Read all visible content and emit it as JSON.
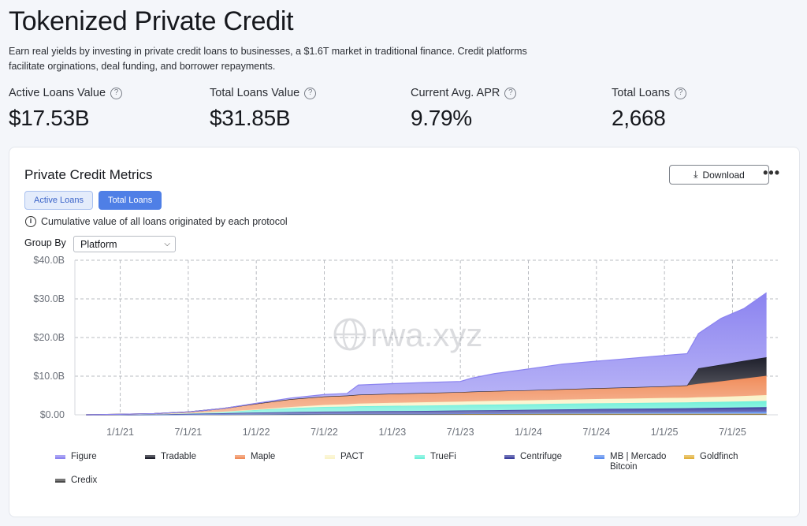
{
  "header": {
    "title": "Tokenized Private Credit",
    "description": "Earn real yields by investing in private credit loans to businesses, a $1.6T market in traditional finance. Credit platforms facilitate orginations, deal funding, and borrower repayments."
  },
  "stats": [
    {
      "label": "Active Loans Value",
      "value": "$17.53B"
    },
    {
      "label": "Total Loans Value",
      "value": "$31.85B"
    },
    {
      "label": "Current Avg. APR",
      "value": "9.79%"
    },
    {
      "label": "Total Loans",
      "value": "2,668"
    }
  ],
  "card": {
    "title": "Private Credit Metrics",
    "download_label": "Download",
    "more_label": "•••",
    "tabs": [
      {
        "label": "Active Loans",
        "active": false
      },
      {
        "label": "Total Loans",
        "active": true
      }
    ],
    "info_text": "Cumulative value of all loans originated by each protocol",
    "group_by_label": "Group By",
    "group_by_value": "Platform",
    "watermark": "rwa.xyz"
  },
  "chart_data": {
    "type": "area",
    "stacked": true,
    "cumulative": true,
    "y_ticks": [
      "$0.00",
      "$10.0B",
      "$20.0B",
      "$30.0B",
      "$40.0B"
    ],
    "ylim": [
      0,
      40
    ],
    "y_unit": "$B",
    "x_ticks": [
      "1/1/21",
      "7/1/21",
      "1/1/22",
      "7/1/22",
      "1/1/23",
      "7/1/23",
      "1/1/24",
      "7/1/24",
      "1/1/25",
      "7/1/25"
    ],
    "x": [
      "2020-10",
      "2021-01",
      "2021-04",
      "2021-07",
      "2021-10",
      "2022-01",
      "2022-04",
      "2022-07",
      "2022-09",
      "2022-10",
      "2023-01",
      "2023-04",
      "2023-07",
      "2023-08",
      "2023-10",
      "2024-01",
      "2024-04",
      "2024-07",
      "2024-10",
      "2025-01",
      "2025-03",
      "2025-04",
      "2025-06",
      "2025-08",
      "2025-10"
    ],
    "grid": true,
    "legend_position": "bottom",
    "series": [
      {
        "name": "Credix",
        "color": "#4a4a4a",
        "values": [
          0,
          0,
          0,
          0.02,
          0.05,
          0.08,
          0.1,
          0.12,
          0.12,
          0.13,
          0.13,
          0.13,
          0.13,
          0.13,
          0.13,
          0.13,
          0.13,
          0.13,
          0.13,
          0.13,
          0.13,
          0.13,
          0.13,
          0.13,
          0.13
        ]
      },
      {
        "name": "Goldfinch",
        "color": "#e2b13c",
        "values": [
          0,
          0,
          0.01,
          0.03,
          0.06,
          0.1,
          0.12,
          0.13,
          0.13,
          0.13,
          0.13,
          0.13,
          0.13,
          0.13,
          0.13,
          0.13,
          0.13,
          0.13,
          0.13,
          0.13,
          0.13,
          0.13,
          0.13,
          0.13,
          0.13
        ]
      },
      {
        "name": "MB | Mercado Bitcoin",
        "color": "#5b8def",
        "values": [
          0,
          0,
          0,
          0,
          0,
          0,
          0,
          0,
          0,
          0,
          0,
          0,
          0.05,
          0.08,
          0.1,
          0.15,
          0.2,
          0.25,
          0.3,
          0.35,
          0.38,
          0.4,
          0.45,
          0.5,
          0.55
        ]
      },
      {
        "name": "Centrifuge",
        "color": "#3b3f9e",
        "values": [
          0,
          0.05,
          0.1,
          0.2,
          0.3,
          0.4,
          0.5,
          0.6,
          0.62,
          0.65,
          0.7,
          0.75,
          0.8,
          0.82,
          0.85,
          0.9,
          0.95,
          1.0,
          1.02,
          1.05,
          1.08,
          1.1,
          1.12,
          1.15,
          1.18
        ]
      },
      {
        "name": "TrueFi",
        "color": "#6ef0d9",
        "values": [
          0,
          0.05,
          0.1,
          0.2,
          0.4,
          0.7,
          1.0,
          1.2,
          1.25,
          1.3,
          1.35,
          1.4,
          1.42,
          1.43,
          1.45,
          1.45,
          1.46,
          1.47,
          1.48,
          1.5,
          1.5,
          1.52,
          1.55,
          1.57,
          1.6
        ]
      },
      {
        "name": "PACT",
        "color": "#faf3c8",
        "values": [
          0,
          0,
          0,
          0,
          0,
          0.1,
          0.3,
          0.5,
          0.6,
          0.7,
          0.8,
          0.85,
          0.9,
          0.9,
          0.95,
          1.0,
          1.05,
          1.1,
          1.15,
          1.2,
          1.2,
          1.25,
          1.3,
          1.4,
          1.5
        ]
      },
      {
        "name": "Maple",
        "color": "#f08c5a",
        "values": [
          0,
          0.02,
          0.1,
          0.3,
          0.8,
          1.5,
          2.0,
          2.2,
          2.25,
          2.3,
          2.35,
          2.4,
          2.45,
          2.5,
          2.55,
          2.6,
          2.7,
          2.8,
          2.9,
          3.0,
          3.2,
          3.5,
          4.0,
          4.5,
          5.0
        ]
      },
      {
        "name": "Tradable",
        "color": "#1e1f2b",
        "values": [
          0,
          0,
          0,
          0,
          0,
          0,
          0,
          0,
          0,
          0,
          0,
          0,
          0,
          0,
          0,
          0,
          0,
          0,
          0,
          0,
          0,
          4.0,
          4.3,
          4.6,
          4.8
        ]
      },
      {
        "name": "Figure",
        "color": "#8b83f0",
        "values": [
          0,
          0,
          0,
          0,
          0,
          0.1,
          0.3,
          0.5,
          0.55,
          2.5,
          2.6,
          2.7,
          2.75,
          3.5,
          4.5,
          5.5,
          6.5,
          7.0,
          7.5,
          8.0,
          8.2,
          9.0,
          12.0,
          13.5,
          16.7
        ]
      }
    ],
    "legend_order": [
      "Figure",
      "Tradable",
      "Maple",
      "PACT",
      "TrueFi",
      "Centrifuge",
      "MB | Mercado Bitcoin",
      "Goldfinch",
      "Credix"
    ]
  }
}
